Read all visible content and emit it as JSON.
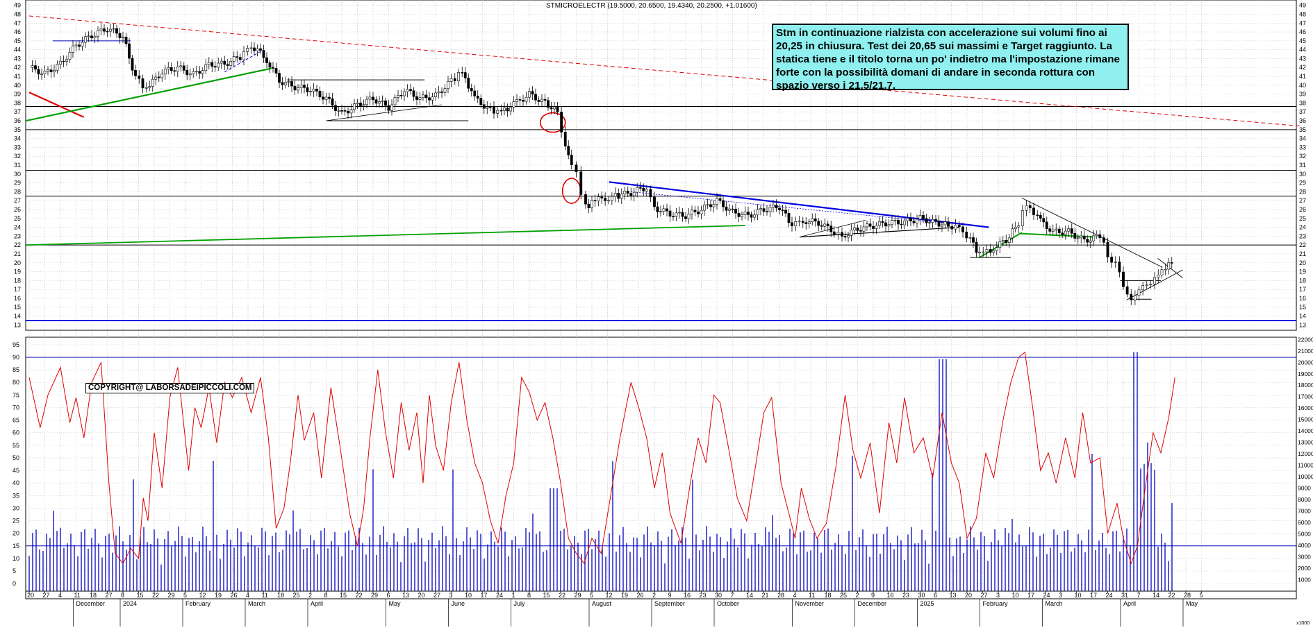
{
  "chart_data": [
    {
      "type": "candlestick",
      "title": "STMICROELECTR (19.5000, 20.6500, 19.4340, 20.2500, +1.01600)",
      "y_ticks": [
        13,
        14,
        15,
        16,
        17,
        18,
        19,
        20,
        21,
        22,
        23,
        24,
        25,
        26,
        27,
        28,
        29,
        30,
        31,
        32,
        33,
        34,
        35,
        36,
        37,
        38,
        39,
        40,
        41,
        42,
        43,
        44,
        45,
        46,
        47,
        48,
        49
      ],
      "ylim": [
        12.4,
        49.6
      ],
      "x_day_ticks": [
        "20",
        "27",
        "4",
        "11",
        "18",
        "27",
        "8",
        "15",
        "22",
        "29",
        "5",
        "12",
        "19",
        "26",
        "4",
        "11",
        "18",
        "25",
        "2",
        "8",
        "15",
        "22",
        "29",
        "6",
        "13",
        "20",
        "27",
        "3",
        "10",
        "17",
        "24",
        "1",
        "8",
        "15",
        "22",
        "29",
        "5",
        "12",
        "19",
        "26",
        "2",
        "9",
        "16",
        "23",
        "30",
        "7",
        "14",
        "21",
        "28",
        "4",
        "11",
        "18",
        "25",
        "2",
        "9",
        "16",
        "23",
        "30",
        "6",
        "13",
        "20",
        "27",
        "3",
        "10",
        "17",
        "24",
        "3",
        "10",
        "17",
        "24",
        "31",
        "7",
        "14",
        "22",
        "28",
        "5"
      ],
      "x_month_labels": [
        {
          "label": "December",
          "day_index": 3
        },
        {
          "label": "2024",
          "day_index": 6
        },
        {
          "label": "February",
          "day_index": 10
        },
        {
          "label": "March",
          "day_index": 14
        },
        {
          "label": "April",
          "day_index": 18
        },
        {
          "label": "May",
          "day_index": 23
        },
        {
          "label": "June",
          "day_index": 27
        },
        {
          "label": "July",
          "day_index": 31
        },
        {
          "label": "August",
          "day_index": 36
        },
        {
          "label": "September",
          "day_index": 40
        },
        {
          "label": "October",
          "day_index": 44
        },
        {
          "label": "November",
          "day_index": 49
        },
        {
          "label": "December",
          "day_index": 53
        },
        {
          "label": "2025",
          "day_index": 57
        },
        {
          "label": "February",
          "day_index": 61
        },
        {
          "label": "March",
          "day_index": 65
        },
        {
          "label": "April",
          "day_index": 70
        },
        {
          "label": "May",
          "day_index": 74
        }
      ],
      "price_path": [
        [
          0,
          42.0
        ],
        [
          1,
          41.3
        ],
        [
          2,
          42.4
        ],
        [
          3,
          44.5
        ],
        [
          4,
          45.6
        ],
        [
          5,
          46.4
        ],
        [
          6,
          45.5
        ],
        [
          6.8,
          40.8
        ],
        [
          7.5,
          39.6
        ],
        [
          8.5,
          41.5
        ],
        [
          9.5,
          42.0
        ],
        [
          10.5,
          41.2
        ],
        [
          11.5,
          42.3
        ],
        [
          12.5,
          42.4
        ],
        [
          13.5,
          43.2
        ],
        [
          14.2,
          44.5
        ],
        [
          15,
          43.4
        ],
        [
          16,
          40.5
        ],
        [
          17,
          39.8
        ],
        [
          18,
          39.5
        ],
        [
          19,
          38.5
        ],
        [
          20,
          36.8
        ],
        [
          21,
          37.8
        ],
        [
          22,
          38.5
        ],
        [
          23,
          37.5
        ],
        [
          24,
          39.5
        ],
        [
          25,
          38.5
        ],
        [
          26,
          38.8
        ],
        [
          27,
          40.5
        ],
        [
          27.7,
          41.5
        ],
        [
          28.5,
          38.5
        ],
        [
          29.5,
          37.2
        ],
        [
          30.2,
          37.0
        ],
        [
          31,
          37.8
        ],
        [
          32,
          39.0
        ],
        [
          33,
          38.0
        ],
        [
          33.8,
          37.0
        ],
        [
          34.3,
          33.0
        ],
        [
          34.7,
          31.0
        ],
        [
          35,
          30.2
        ],
        [
          35.3,
          28.0
        ],
        [
          35.6,
          26.3
        ],
        [
          36.2,
          27.0
        ],
        [
          37.5,
          27.5
        ],
        [
          38.5,
          27.9
        ],
        [
          39.5,
          28.5
        ],
        [
          40,
          26.2
        ],
        [
          41,
          25.5
        ],
        [
          42,
          25.3
        ],
        [
          43,
          26.0
        ],
        [
          44,
          27.0
        ],
        [
          45,
          25.7
        ],
        [
          46,
          25.3
        ],
        [
          47,
          26.0
        ],
        [
          48,
          26.3
        ],
        [
          48.8,
          24.3
        ],
        [
          49.5,
          24.8
        ],
        [
          50.5,
          24.5
        ],
        [
          51.5,
          23.5
        ],
        [
          52,
          23.0
        ],
        [
          53,
          23.8
        ],
        [
          54,
          24.2
        ],
        [
          55,
          24.5
        ],
        [
          56,
          24.6
        ],
        [
          57,
          25.0
        ],
        [
          58,
          24.5
        ],
        [
          58.8,
          24.2
        ],
        [
          59.5,
          24.0
        ],
        [
          60.2,
          22.5
        ],
        [
          60.8,
          21.0
        ],
        [
          61.5,
          21.5
        ],
        [
          62.5,
          22.5
        ],
        [
          63.3,
          24.5
        ],
        [
          63.8,
          26.8
        ],
        [
          64.5,
          25.0
        ],
        [
          65.5,
          23.5
        ],
        [
          66.5,
          23.5
        ],
        [
          67.5,
          22.5
        ],
        [
          68.5,
          23.0
        ],
        [
          69,
          21.0
        ],
        [
          69.5,
          19.8
        ],
        [
          70,
          17.5
        ],
        [
          70.5,
          15.8
        ],
        [
          71,
          16.8
        ],
        [
          71.5,
          17.8
        ],
        [
          72,
          18.0
        ],
        [
          72.7,
          19.6
        ],
        [
          73.1,
          20.25
        ]
      ],
      "drawn_lines": [
        {
          "name": "red-dashed-resistance",
          "color": "#e00000",
          "dash": true
        },
        {
          "name": "red-short-line",
          "color": "#e00000"
        },
        {
          "name": "green-support-upper",
          "color": "#00a000"
        },
        {
          "name": "green-long-support",
          "color": "#00a000"
        },
        {
          "name": "blue-trend-line",
          "color": "#0000e0"
        },
        {
          "name": "green-feb-march",
          "color": "#00a000"
        }
      ],
      "horizontal_levels": [
        37.6,
        35.0,
        30.4,
        27.5,
        22.0,
        13.5
      ],
      "level_13_5_color": "#0000e0"
    },
    {
      "type": "line+bar",
      "rsi_ticks": [
        0,
        5,
        10,
        15,
        20,
        25,
        30,
        35,
        40,
        45,
        50,
        55,
        60,
        65,
        70,
        75,
        80,
        85,
        90,
        95
      ],
      "rsi_ylim": [
        -3,
        98
      ],
      "volume_ticks": [
        "1000",
        "2000",
        "3000",
        "4000",
        "5000",
        "6000",
        "7000",
        "8000",
        "9000",
        "10000",
        "11000",
        "12000",
        "13000",
        "14000",
        "15000",
        "16000",
        "17000",
        "18000",
        "19000",
        "20000",
        "21000",
        "22000"
      ],
      "volume_unit": "x1000",
      "volume_ylim": [
        0,
        22200
      ],
      "oscillator_color": "#e00000",
      "volume_color": "#0000c0",
      "oscillator_levels": [
        15,
        90
      ],
      "oscillator_path": [
        [
          0,
          82
        ],
        [
          0.7,
          62
        ],
        [
          1.2,
          75
        ],
        [
          2,
          86
        ],
        [
          2.6,
          64
        ],
        [
          3,
          74
        ],
        [
          3.5,
          58
        ],
        [
          4,
          80
        ],
        [
          4.6,
          88
        ],
        [
          5.1,
          40
        ],
        [
          5.5,
          12
        ],
        [
          6,
          8
        ],
        [
          6.5,
          14
        ],
        [
          7,
          10
        ],
        [
          7.3,
          34
        ],
        [
          7.6,
          25
        ],
        [
          8,
          60
        ],
        [
          8.5,
          38
        ],
        [
          9,
          74
        ],
        [
          9.5,
          86
        ],
        [
          10.2,
          45
        ],
        [
          10.6,
          70
        ],
        [
          11,
          62
        ],
        [
          11.5,
          78
        ],
        [
          12,
          56
        ],
        [
          12.5,
          80
        ],
        [
          13,
          74
        ],
        [
          13.6,
          82
        ],
        [
          14.2,
          68
        ],
        [
          14.8,
          82
        ],
        [
          15.3,
          58
        ],
        [
          15.8,
          22
        ],
        [
          16.3,
          30
        ],
        [
          16.7,
          48
        ],
        [
          17.2,
          75
        ],
        [
          17.6,
          57
        ],
        [
          18.2,
          68
        ],
        [
          18.7,
          42
        ],
        [
          19.3,
          78
        ],
        [
          19.9,
          54
        ],
        [
          20.5,
          28
        ],
        [
          21,
          15
        ],
        [
          21.4,
          30
        ],
        [
          21.8,
          58
        ],
        [
          22.3,
          85
        ],
        [
          22.8,
          60
        ],
        [
          23.3,
          42
        ],
        [
          23.8,
          72
        ],
        [
          24.3,
          53
        ],
        [
          24.8,
          68
        ],
        [
          25.2,
          40
        ],
        [
          25.6,
          75
        ],
        [
          26,
          55
        ],
        [
          26.5,
          45
        ],
        [
          27,
          72
        ],
        [
          27.5,
          88
        ],
        [
          28,
          65
        ],
        [
          28.5,
          48
        ],
        [
          29,
          40
        ],
        [
          29.5,
          25
        ],
        [
          30,
          16
        ],
        [
          30.5,
          35
        ],
        [
          31,
          48
        ],
        [
          31.5,
          82
        ],
        [
          32,
          76
        ],
        [
          32.5,
          65
        ],
        [
          33,
          72
        ],
        [
          33.5,
          58
        ],
        [
          34,
          40
        ],
        [
          34.5,
          18
        ],
        [
          35,
          12
        ],
        [
          35.5,
          8
        ],
        [
          36,
          18
        ],
        [
          36.6,
          12
        ],
        [
          37.2,
          35
        ],
        [
          37.8,
          58
        ],
        [
          38.5,
          80
        ],
        [
          39,
          70
        ],
        [
          39.5,
          58
        ],
        [
          40,
          38
        ],
        [
          40.5,
          52
        ],
        [
          41,
          28
        ],
        [
          41.7,
          16
        ],
        [
          42.3,
          40
        ],
        [
          42.8,
          58
        ],
        [
          43.3,
          48
        ],
        [
          43.8,
          75
        ],
        [
          44.2,
          72
        ],
        [
          44.8,
          52
        ],
        [
          45.3,
          34
        ],
        [
          45.9,
          25
        ],
        [
          46.5,
          48
        ],
        [
          47,
          68
        ],
        [
          47.5,
          74
        ],
        [
          48.1,
          40
        ],
        [
          48.6,
          28
        ],
        [
          49,
          18
        ],
        [
          49.4,
          38
        ],
        [
          49.9,
          26
        ],
        [
          50.4,
          18
        ],
        [
          51,
          24
        ],
        [
          51.6,
          46
        ],
        [
          52.2,
          75
        ],
        [
          52.7,
          53
        ],
        [
          53.2,
          42
        ],
        [
          53.8,
          56
        ],
        [
          54.4,
          28
        ],
        [
          55,
          64
        ],
        [
          55.5,
          48
        ],
        [
          56,
          74
        ],
        [
          56.6,
          52
        ],
        [
          57.2,
          58
        ],
        [
          57.8,
          42
        ],
        [
          58.4,
          68
        ],
        [
          59,
          48
        ],
        [
          59.5,
          40
        ],
        [
          60,
          18
        ],
        [
          60.6,
          26
        ],
        [
          61.2,
          52
        ],
        [
          61.7,
          42
        ],
        [
          62.3,
          65
        ],
        [
          62.8,
          80
        ],
        [
          63.3,
          90
        ],
        [
          63.7,
          92
        ],
        [
          64.2,
          70
        ],
        [
          64.7,
          45
        ],
        [
          65.2,
          52
        ],
        [
          65.7,
          40
        ],
        [
          66.3,
          58
        ],
        [
          66.9,
          42
        ],
        [
          67.4,
          68
        ],
        [
          67.9,
          48
        ],
        [
          68.5,
          50
        ],
        [
          69,
          20
        ],
        [
          69.6,
          32
        ],
        [
          70,
          18
        ],
        [
          70.5,
          8
        ],
        [
          70.9,
          15
        ],
        [
          71.4,
          38
        ],
        [
          71.9,
          60
        ],
        [
          72.4,
          52
        ],
        [
          72.9,
          66
        ],
        [
          73.3,
          82
        ]
      ],
      "volume_bars_sample": [
        4100,
        3000,
        5200,
        2600,
        7700,
        3400,
        2100,
        3300,
        4800,
        6100,
        20300,
        2700,
        20900,
        9700
      ]
    }
  ],
  "annotation": {
    "text": "Stm in continuazione rialzista con accelerazione sui volumi fino ai 20,25 in chiusura. Test dei 20,65 sui massimi e Target raggiunto. La statica tiene e il titolo torna un po' indietro ma l'impostazione rimane forte con la possibilità domani di andare in seconda rottura con spazio verso i 21,5/21,7."
  },
  "copyright": "COPYRIGHT@ LABORSADEIPICCOLI.COM"
}
